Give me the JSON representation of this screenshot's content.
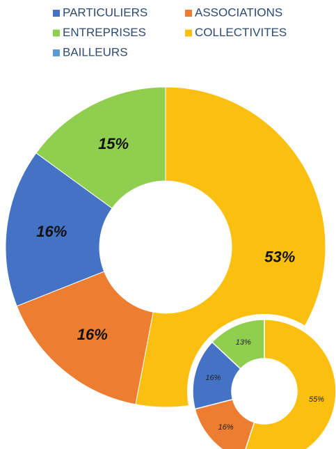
{
  "chart_data": [
    {
      "type": "donut",
      "legend": [
        {
          "name": "PARTICULIERS",
          "color": "#4472c4"
        },
        {
          "name": "ASSOCIATIONS",
          "color": "#ed7d31"
        },
        {
          "name": "ENTREPRISES",
          "color": "#8fce4f"
        },
        {
          "name": "COLLECTIVITES",
          "color": "#fbbf0f"
        },
        {
          "name": "BAILLEURS",
          "color": "#5b9bd5"
        }
      ],
      "categories": [
        "COLLECTIVITES",
        "ASSOCIATIONS",
        "PARTICULIERS",
        "ENTREPRISES"
      ],
      "values": [
        53,
        16,
        16,
        15
      ],
      "value_labels": [
        "53%",
        "16%",
        "16%",
        "15%"
      ],
      "colors": [
        "#fbbf0f",
        "#ed7d31",
        "#4472c4",
        "#8fce4f"
      ]
    },
    {
      "type": "donut",
      "categories": [
        "COLLECTIVITES",
        "ASSOCIATIONS",
        "PARTICULIERS",
        "ENTREPRISES"
      ],
      "values": [
        55,
        16,
        16,
        13
      ],
      "value_labels": [
        "55%",
        "16%",
        "16%",
        "13%"
      ],
      "colors": [
        "#fbbf0f",
        "#ed7d31",
        "#4472c4",
        "#8fce4f"
      ]
    }
  ]
}
